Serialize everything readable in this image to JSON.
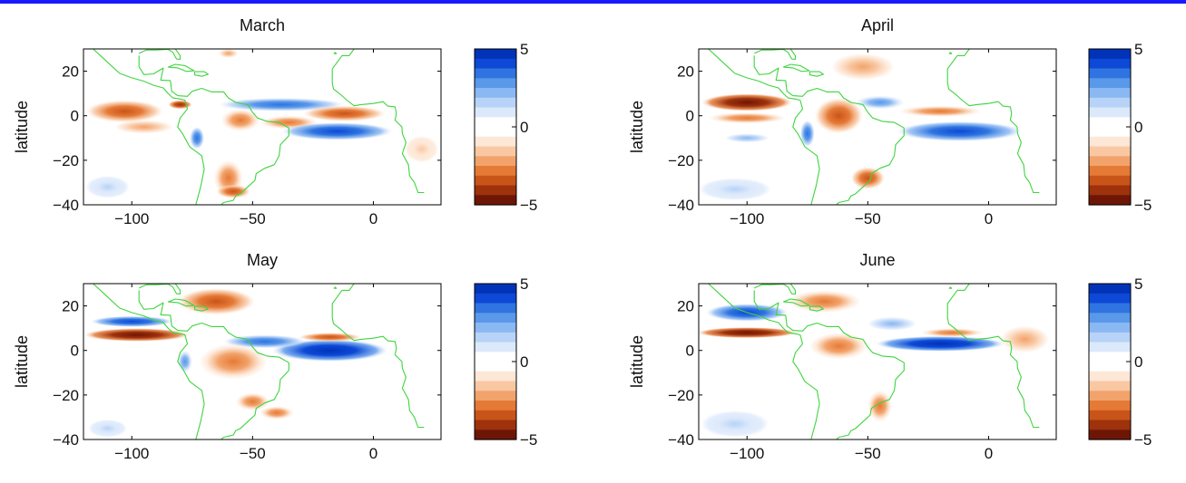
{
  "colors": {
    "top_rule": "#1a1aff",
    "coastline": "#3fd43f",
    "frame": "#000000",
    "colormap_positive": [
      "#ffffff",
      "#dce9fb",
      "#b7d3f7",
      "#8ab8f2",
      "#5a98ea",
      "#2f74e0",
      "#0d49d6",
      "#0033b8"
    ],
    "colormap_negative": [
      "#ffffff",
      "#fde7d6",
      "#f9c8a3",
      "#f2a36b",
      "#e57a37",
      "#c9541a",
      "#9e320c",
      "#6e1605"
    ]
  },
  "chart_data": [
    {
      "type": "heatmap",
      "title": "March",
      "xlabel": "",
      "ylabel": "latitude",
      "xlim": [
        -120,
        28
      ],
      "ylim": [
        -40,
        30
      ],
      "xticks": [
        "−100",
        "−50",
        "0"
      ],
      "yticks": [
        "20",
        "0",
        "−20",
        "−40"
      ],
      "colorbar": {
        "min": -5,
        "max": 5,
        "ticks": [
          "5",
          "0",
          "−5"
        ]
      },
      "features": [
        {
          "lon": -103,
          "lat": 2,
          "value": -3.5,
          "rx": 16,
          "ry": 5
        },
        {
          "lon": -95,
          "lat": -5,
          "value": -2,
          "rx": 12,
          "ry": 3
        },
        {
          "lon": -80,
          "lat": 5,
          "value": -4,
          "rx": 5,
          "ry": 2
        },
        {
          "lon": -38,
          "lat": 5,
          "value": 3.5,
          "rx": 26,
          "ry": 3
        },
        {
          "lon": -35,
          "lat": -3,
          "value": -3,
          "rx": 12,
          "ry": 3
        },
        {
          "lon": -12,
          "lat": 1,
          "value": -3.5,
          "rx": 17,
          "ry": 3.5
        },
        {
          "lon": -15,
          "lat": -7,
          "value": 4,
          "rx": 23,
          "ry": 4
        },
        {
          "lon": -55,
          "lat": -2,
          "value": -3,
          "rx": 8,
          "ry": 5
        },
        {
          "lon": -73,
          "lat": -10,
          "value": 3.5,
          "rx": 3,
          "ry": 5
        },
        {
          "lon": -60,
          "lat": -28,
          "value": -2.5,
          "rx": 6,
          "ry": 8
        },
        {
          "lon": -58,
          "lat": -34,
          "value": -3.5,
          "rx": 7,
          "ry": 3
        },
        {
          "lon": -110,
          "lat": -32,
          "value": 1.5,
          "rx": 9,
          "ry": 5
        },
        {
          "lon": 20,
          "lat": -15,
          "value": -1.5,
          "rx": 7,
          "ry": 6
        },
        {
          "lon": -60,
          "lat": 28,
          "value": -2,
          "rx": 4,
          "ry": 2
        }
      ]
    },
    {
      "type": "heatmap",
      "title": "April",
      "xlabel": "",
      "ylabel": "latitude",
      "xlim": [
        -120,
        28
      ],
      "ylim": [
        -40,
        30
      ],
      "xticks": [
        "−100",
        "−50",
        "0"
      ],
      "yticks": [
        "20",
        "0",
        "−20",
        "−40"
      ],
      "colorbar": {
        "min": -5,
        "max": 5,
        "ticks": [
          "5",
          "0",
          "−5"
        ]
      },
      "features": [
        {
          "lon": -100,
          "lat": 6,
          "value": -4.8,
          "rx": 19,
          "ry": 4
        },
        {
          "lon": -100,
          "lat": -1,
          "value": -2.5,
          "rx": 16,
          "ry": 2.5
        },
        {
          "lon": -12,
          "lat": -7,
          "value": 4.5,
          "rx": 26,
          "ry": 4.5
        },
        {
          "lon": -20,
          "lat": 2,
          "value": -3,
          "rx": 17,
          "ry": 2.5
        },
        {
          "lon": -45,
          "lat": 6,
          "value": 3,
          "rx": 10,
          "ry": 3
        },
        {
          "lon": -62,
          "lat": 0,
          "value": -3.5,
          "rx": 10,
          "ry": 8
        },
        {
          "lon": -52,
          "lat": 22,
          "value": -2,
          "rx": 13,
          "ry": 6
        },
        {
          "lon": -50,
          "lat": -28,
          "value": -3.5,
          "rx": 7,
          "ry": 5
        },
        {
          "lon": -100,
          "lat": -10,
          "value": 2,
          "rx": 9,
          "ry": 2
        },
        {
          "lon": -105,
          "lat": -33,
          "value": 1.2,
          "rx": 15,
          "ry": 5
        },
        {
          "lon": -75,
          "lat": -8,
          "value": 3.5,
          "rx": 3,
          "ry": 6
        }
      ]
    },
    {
      "type": "heatmap",
      "title": "May",
      "xlabel": "",
      "ylabel": "latitude",
      "xlim": [
        -120,
        28
      ],
      "ylim": [
        -40,
        30
      ],
      "xticks": [
        "−100",
        "−50",
        "0"
      ],
      "yticks": [
        "20",
        "0",
        "−20",
        "−40"
      ],
      "colorbar": {
        "min": -5,
        "max": 5,
        "ticks": [
          "5",
          "0",
          "−5"
        ]
      },
      "features": [
        {
          "lon": -98,
          "lat": 7,
          "value": -5,
          "rx": 22,
          "ry": 3
        },
        {
          "lon": -100,
          "lat": 13,
          "value": 4,
          "rx": 17,
          "ry": 2.5
        },
        {
          "lon": -18,
          "lat": 0,
          "value": 4.8,
          "rx": 24,
          "ry": 5
        },
        {
          "lon": -45,
          "lat": 4,
          "value": 3.5,
          "rx": 17,
          "ry": 3
        },
        {
          "lon": -18,
          "lat": 6,
          "value": -3.5,
          "rx": 13,
          "ry": 2
        },
        {
          "lon": -65,
          "lat": 22,
          "value": -3.5,
          "rx": 16,
          "ry": 6
        },
        {
          "lon": -58,
          "lat": -5,
          "value": -2.5,
          "rx": 14,
          "ry": 8
        },
        {
          "lon": -50,
          "lat": -23,
          "value": -3,
          "rx": 7,
          "ry": 4
        },
        {
          "lon": -40,
          "lat": -28,
          "value": -2.5,
          "rx": 7,
          "ry": 3
        },
        {
          "lon": -110,
          "lat": -35,
          "value": 1.5,
          "rx": 8,
          "ry": 4
        },
        {
          "lon": -78,
          "lat": -5,
          "value": 3,
          "rx": 3,
          "ry": 5
        }
      ]
    },
    {
      "type": "heatmap",
      "title": "June",
      "xlabel": "",
      "ylabel": "latitude",
      "xlim": [
        -120,
        28
      ],
      "ylim": [
        -40,
        30
      ],
      "xticks": [
        "−100",
        "−50",
        "0"
      ],
      "yticks": [
        "20",
        "0",
        "−20",
        "−40"
      ],
      "colorbar": {
        "min": -5,
        "max": 5,
        "ticks": [
          "5",
          "0",
          "−5"
        ]
      },
      "features": [
        {
          "lon": -100,
          "lat": 8,
          "value": -5,
          "rx": 21,
          "ry": 2.5
        },
        {
          "lon": -100,
          "lat": 17,
          "value": 4,
          "rx": 17,
          "ry": 4
        },
        {
          "lon": -20,
          "lat": 3,
          "value": 5,
          "rx": 27,
          "ry": 3.5
        },
        {
          "lon": -15,
          "lat": 8,
          "value": -3,
          "rx": 13,
          "ry": 2
        },
        {
          "lon": 15,
          "lat": 5,
          "value": -2,
          "rx": 10,
          "ry": 6
        },
        {
          "lon": -68,
          "lat": 22,
          "value": -3,
          "rx": 15,
          "ry": 5
        },
        {
          "lon": -62,
          "lat": 2,
          "value": -3,
          "rx": 12,
          "ry": 6
        },
        {
          "lon": -40,
          "lat": 12,
          "value": 2,
          "rx": 10,
          "ry": 3
        },
        {
          "lon": -45,
          "lat": -25,
          "value": -2.5,
          "rx": 5,
          "ry": 7
        },
        {
          "lon": -105,
          "lat": -33,
          "value": 1.5,
          "rx": 14,
          "ry": 6
        }
      ]
    }
  ]
}
